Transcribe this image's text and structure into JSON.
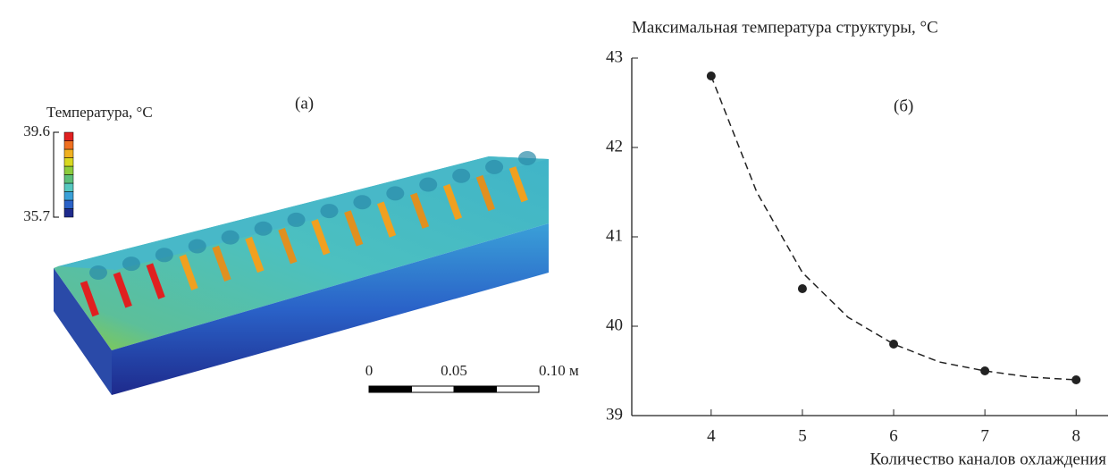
{
  "panel_a": {
    "label": "(а)",
    "colorbar_title": "Температура, °C",
    "colorbar_max": 39.6,
    "colorbar_min": 35.7,
    "colorbar_colors": [
      "#1e2a8c",
      "#2a62c8",
      "#3aa0d8",
      "#56c8c0",
      "#5cbf7a",
      "#8ccc3c",
      "#d8d820",
      "#f0b020",
      "#f07020",
      "#e02020"
    ],
    "scale_ticks": [
      0,
      0.05,
      {
        "value": 0.1,
        "label": "0.10 м"
      }
    ]
  },
  "chart_data": {
    "type": "scatter",
    "title": "Максимальная температура структуры, °C",
    "annotation": "(б)",
    "x_label": "Количество каналов охлаждения",
    "x": [
      4,
      5,
      6,
      7,
      8
    ],
    "values": [
      42.8,
      40.42,
      39.8,
      39.5,
      39.4
    ],
    "color": "#222222",
    "fit": {
      "x": [
        4,
        4.5,
        5,
        5.5,
        6,
        6.5,
        7,
        7.5,
        8
      ],
      "values": [
        42.8,
        41.5,
        40.6,
        40.1,
        39.8,
        39.6,
        39.5,
        39.43,
        39.4
      ]
    },
    "xlim": [
      3.13,
      8.35
    ],
    "ylim": [
      39,
      43
    ],
    "xticks": [
      4,
      5,
      6,
      7,
      8
    ],
    "yticks": [
      39,
      40,
      41,
      42,
      43
    ]
  }
}
